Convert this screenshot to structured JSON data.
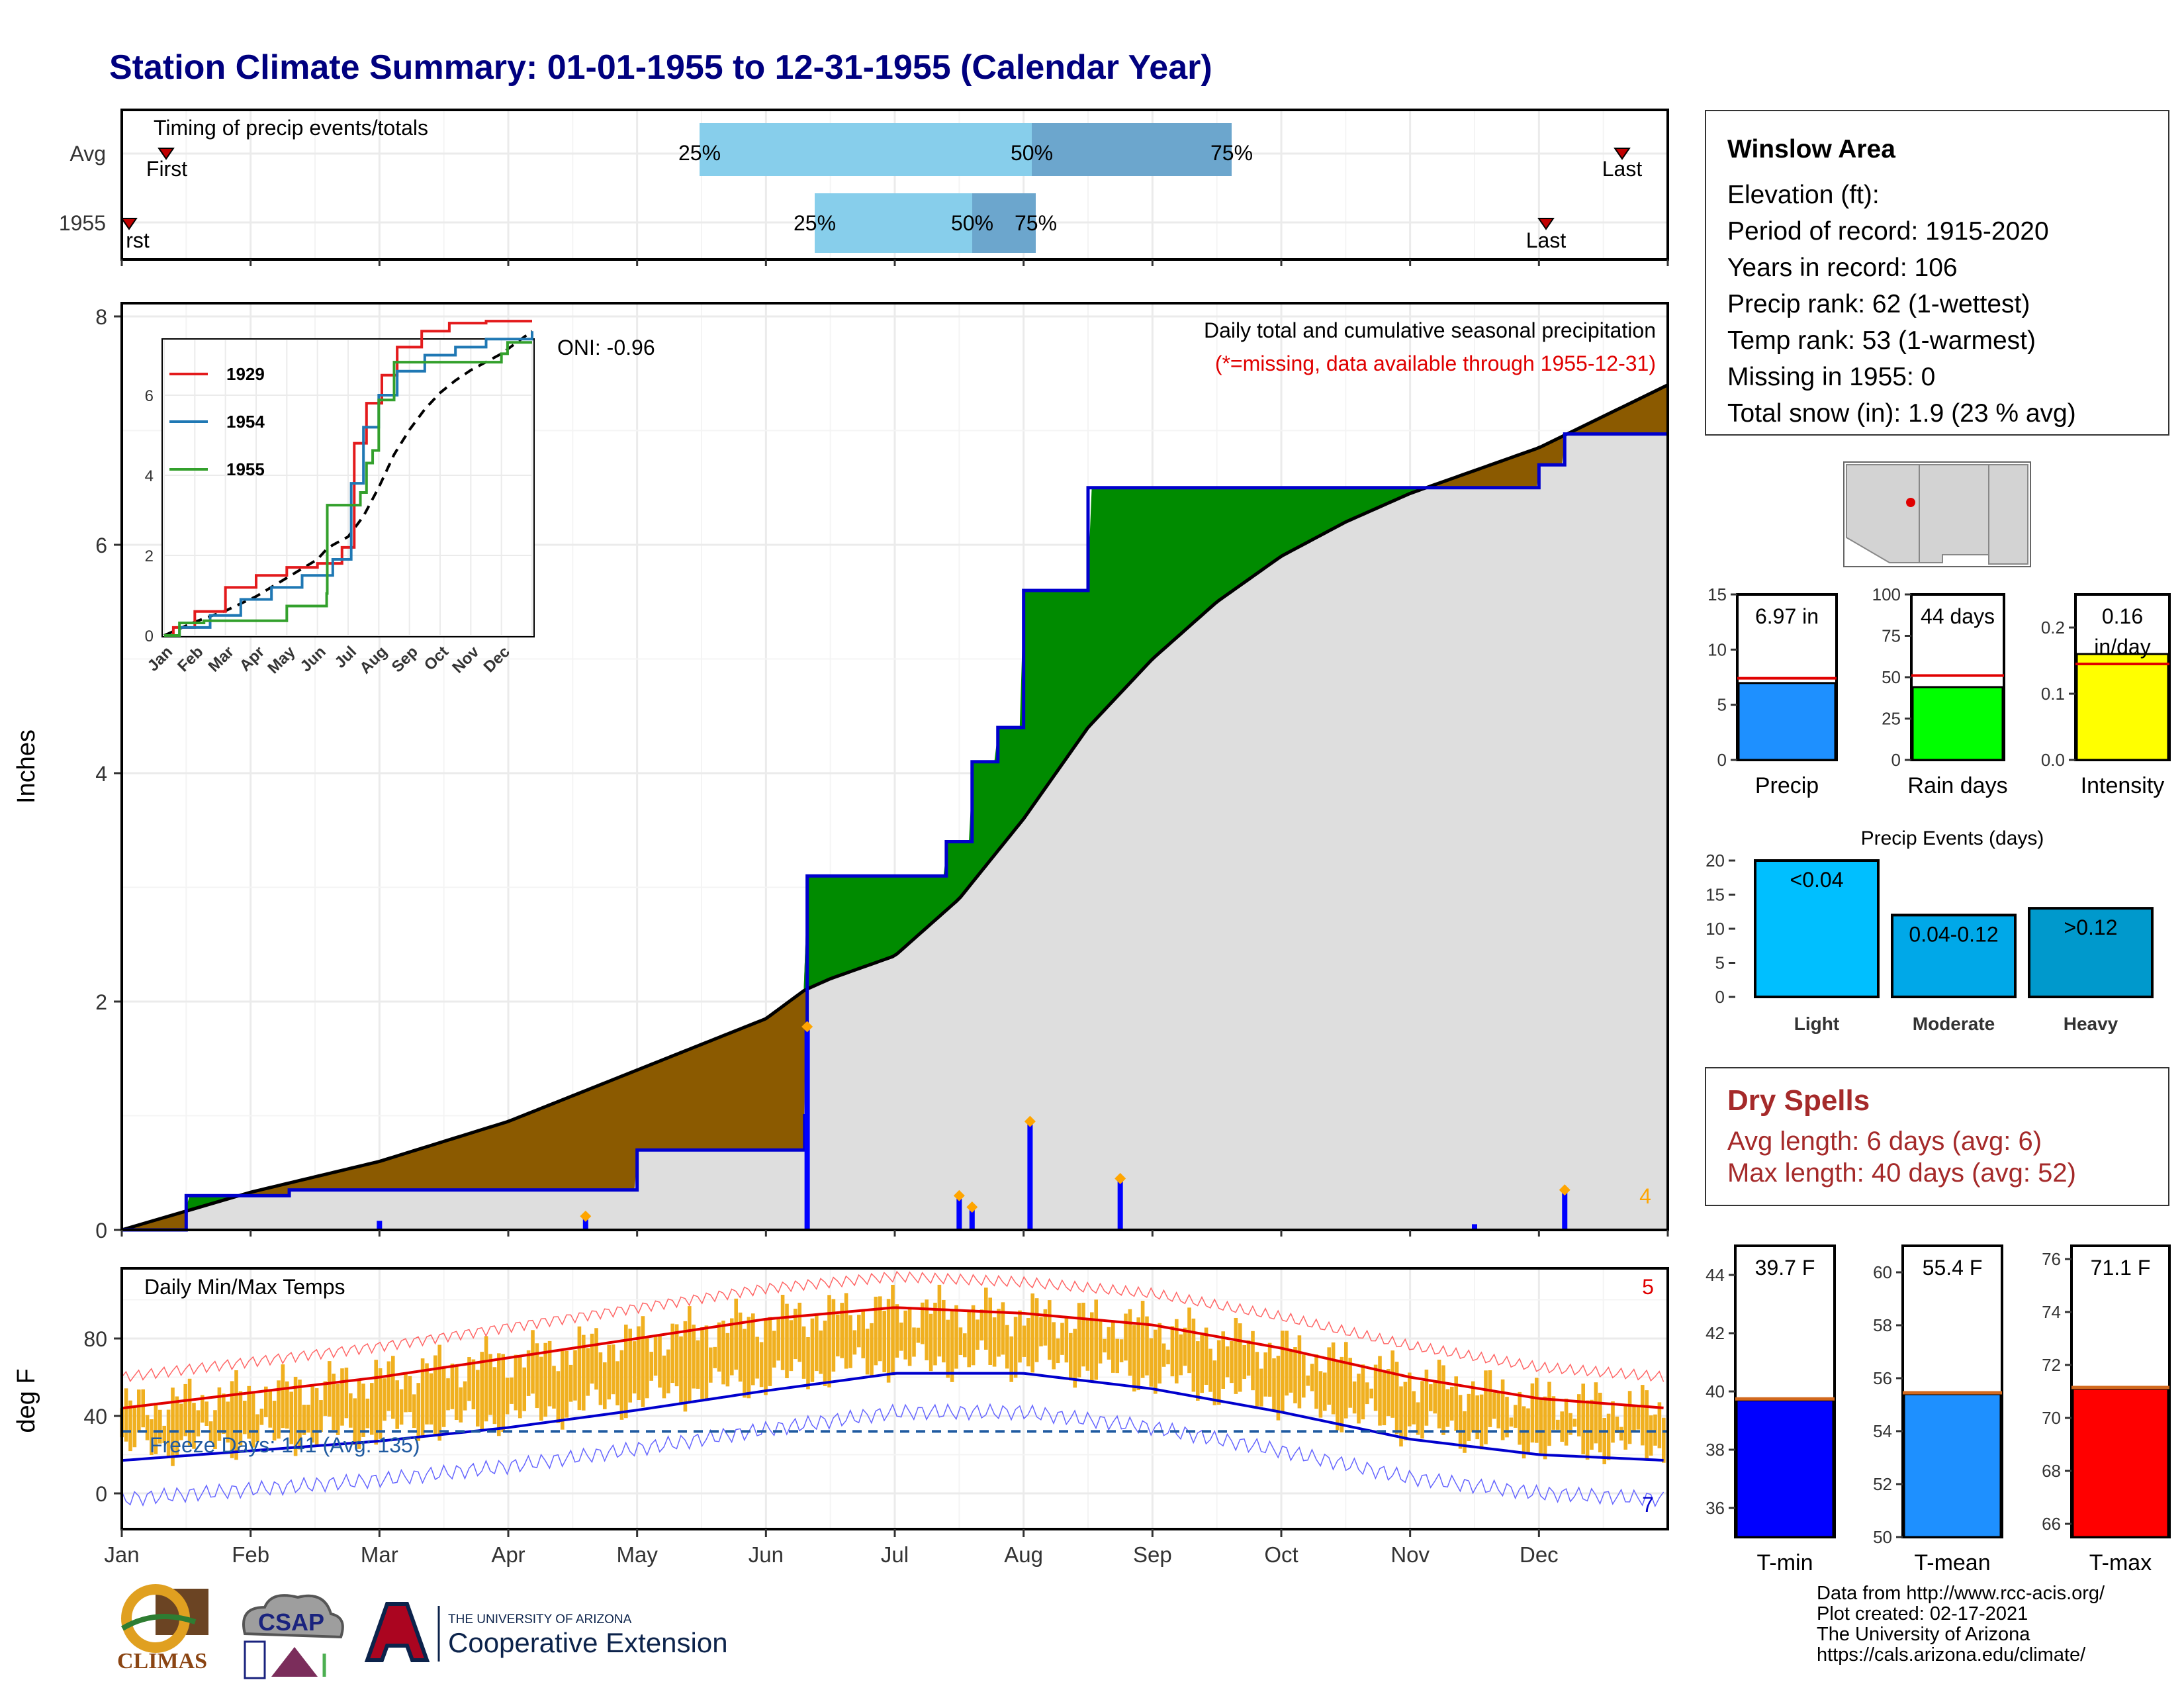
{
  "title": "Station Climate Summary: 01-01-1955 to 12-31-1955 (Calendar Year)",
  "timing_panel": {
    "title": "Timing of precip events/totals",
    "row_labels": [
      "Avg",
      "1955"
    ],
    "avg": {
      "first": "First",
      "last": "Last",
      "p25": "25%",
      "p50": "50%",
      "p75": "75%"
    },
    "year": {
      "first": "rst",
      "last": "Last",
      "p25": "25%",
      "p50": "50%",
      "p75": "75%"
    }
  },
  "precip_panel": {
    "ylabel": "Inches",
    "title": "Daily total and cumulative seasonal precipitation",
    "subtitle": "(*=missing, data available through 1955-12-31)",
    "oni": "ONI: -0.96",
    "corner_count": "4",
    "y_ticks": [
      "0",
      "2",
      "4",
      "6",
      "8"
    ]
  },
  "inset": {
    "legend": [
      "1929",
      "1954",
      "1955"
    ],
    "y_ticks": [
      "0",
      "2",
      "4",
      "6"
    ],
    "x_ticks": [
      "Jan",
      "Feb",
      "Mar",
      "Apr",
      "May",
      "Jun",
      "Jul",
      "Aug",
      "Sep",
      "Oct",
      "Nov",
      "Dec"
    ]
  },
  "temp_panel": {
    "ylabel": "deg F",
    "title": "Daily Min/Max Temps",
    "freeze": "Freeze Days: 141 (Avg: 135)",
    "count_hi": "5",
    "count_lo": "7",
    "y_ticks": [
      "0",
      "40",
      "80"
    ]
  },
  "months": [
    "Jan",
    "Feb",
    "Mar",
    "Apr",
    "May",
    "Jun",
    "Jul",
    "Aug",
    "Sep",
    "Oct",
    "Nov",
    "Dec"
  ],
  "station": {
    "name": "Winslow Area",
    "lines": [
      "Elevation (ft):",
      "Period of record: 1915-2020",
      "Years in record: 106",
      "Precip rank: 62 (1-wettest)",
      "Temp rank: 53 (1-warmest)",
      "Missing in 1955: 0",
      "Total snow (in): 1.9 (23 % avg)"
    ]
  },
  "mini_bars": {
    "precip": {
      "label": "6.97 in",
      "name": "Precip",
      "ticks": [
        "0",
        "5",
        "10",
        "15"
      ]
    },
    "raindays": {
      "label": "44 days",
      "name": "Rain days",
      "ticks": [
        "0",
        "25",
        "50",
        "75",
        "100"
      ]
    },
    "intensity": {
      "label1": "0.16",
      "label2": "in/day",
      "name": "Intensity",
      "ticks": [
        "0.0",
        "0.1",
        "0.2"
      ]
    }
  },
  "events": {
    "title": "Precip Events (days)",
    "ticks": [
      "0",
      "5",
      "10",
      "15",
      "20"
    ],
    "bars": [
      {
        "label": "<0.04",
        "name": "Light"
      },
      {
        "label": "0.04-0.12",
        "name": "Moderate"
      },
      {
        "label": ">0.12",
        "name": "Heavy"
      }
    ]
  },
  "dry_spells": {
    "title": "Dry Spells",
    "avg": "Avg length: 6 days (avg: 6)",
    "max": "Max length: 40 days (avg: 52)"
  },
  "temp_bars": {
    "tmin": {
      "label": "39.7 F",
      "name": "T-min",
      "ticks": [
        "36",
        "38",
        "40",
        "42",
        "44"
      ]
    },
    "tmean": {
      "label": "55.4 F",
      "name": "T-mean",
      "ticks": [
        "50",
        "52",
        "54",
        "56",
        "58",
        "60"
      ]
    },
    "tmax": {
      "label": "71.1 F",
      "name": "T-max",
      "ticks": [
        "66",
        "68",
        "70",
        "72",
        "74",
        "76"
      ]
    }
  },
  "credits": [
    "Data from http://www.rcc-acis.org/",
    "Plot created: 02-17-2021",
    "The University of Arizona",
    "https://cals.arizona.edu/climate/"
  ],
  "logos": {
    "climas": "CLIMAS",
    "csap": "CSAP",
    "ua_line1": "THE UNIVERSITY OF ARIZONA",
    "ua_line2": "Cooperative Extension"
  },
  "chart_data": {
    "type": "area",
    "x_unit": "month of 1955",
    "cumulative_precip_1955": {
      "x": [
        0,
        0.5,
        1.3,
        2.0,
        3.0,
        4.0,
        5.3,
        5.32,
        6.2,
        6.4,
        6.6,
        6.8,
        7.0,
        7.25,
        7.5,
        7.85,
        8.0,
        9.0,
        10.0,
        11.0,
        11.2,
        12.0
      ],
      "y": [
        0,
        0.3,
        0.35,
        0.35,
        0.35,
        0.7,
        1.0,
        3.1,
        3.1,
        3.4,
        4.1,
        4.4,
        5.6,
        5.6,
        6.5,
        6.5,
        6.5,
        6.5,
        6.5,
        6.7,
        6.97,
        6.97
      ]
    },
    "cumulative_precip_avg": {
      "x": [
        0,
        1,
        2,
        3,
        4,
        5,
        5.3,
        5.5,
        6.0,
        6.5,
        7.0,
        7.5,
        8.0,
        8.5,
        9.0,
        9.5,
        10.0,
        11.0,
        12.0
      ],
      "y": [
        0,
        0.33,
        0.6,
        0.95,
        1.4,
        1.85,
        2.1,
        2.2,
        2.4,
        2.9,
        3.6,
        4.4,
        5.0,
        5.5,
        5.9,
        6.2,
        6.45,
        6.85,
        7.4
      ]
    },
    "daily_precip_1955": [
      {
        "x": 5.32,
        "y": 1.78
      },
      {
        "x": 6.5,
        "y": 0.3
      },
      {
        "x": 6.6,
        "y": 0.2
      },
      {
        "x": 7.05,
        "y": 0.95
      },
      {
        "x": 7.75,
        "y": 0.45
      },
      {
        "x": 11.2,
        "y": 0.35
      },
      {
        "x": 2.0,
        "y": 0.08
      },
      {
        "x": 3.6,
        "y": 0.12
      },
      {
        "x": 10.5,
        "y": 0.05
      }
    ],
    "temps": {
      "y_range": [
        -20,
        110
      ],
      "avg_max": {
        "x": [
          0,
          1,
          2,
          3,
          4,
          5,
          6,
          7,
          8,
          9,
          10,
          11,
          12
        ],
        "y": [
          44,
          52,
          60,
          70,
          80,
          90,
          96,
          93,
          87,
          75,
          60,
          49,
          44
        ]
      },
      "avg_min": {
        "x": [
          0,
          1,
          2,
          3,
          4,
          5,
          6,
          7,
          8,
          9,
          10,
          11,
          12
        ],
        "y": [
          17,
          22,
          27,
          34,
          43,
          53,
          62,
          62,
          54,
          42,
          28,
          20,
          17
        ]
      },
      "freeze_line": 32
    },
    "summary_bars": {
      "precip_in": 6.97,
      "precip_avg": 7.4,
      "rain_days": 44,
      "rain_days_avg": 51,
      "intensity": 0.16,
      "intensity_avg": 0.145,
      "events_light": 20,
      "events_moderate": 12,
      "events_heavy": 13,
      "tmin": 39.7,
      "tmean": 55.4,
      "tmax": 71.1
    }
  }
}
